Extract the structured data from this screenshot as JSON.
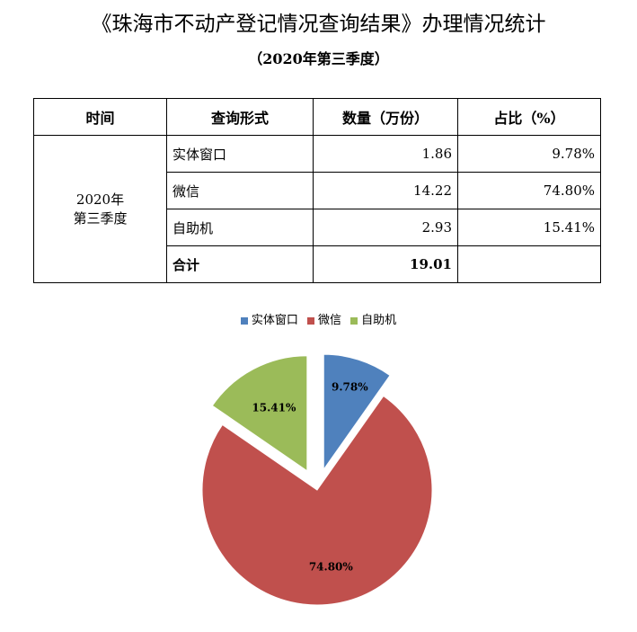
{
  "header": {
    "title": "《珠海市不动产登记情况查询结果》办理情况统计",
    "subtitle": "（2020年第三季度）"
  },
  "table": {
    "headers": [
      "时间",
      "查询形式",
      "数量（万份）",
      "占比（%）"
    ],
    "period_line1": "2020年",
    "period_line2": "第三季度",
    "rows": [
      {
        "type": "实体窗口",
        "count": "1.86",
        "share": "9.78%"
      },
      {
        "type": "微信",
        "count": "14.22",
        "share": "74.80%"
      },
      {
        "type": "自助机",
        "count": "2.93",
        "share": "15.41%"
      }
    ],
    "total": {
      "type": "合计",
      "count": "19.01",
      "share": ""
    }
  },
  "chart_data": {
    "type": "pie",
    "categories": [
      "实体窗口",
      "微信",
      "自助机"
    ],
    "values": [
      9.78,
      74.8,
      15.41
    ],
    "labels": [
      "9.78%",
      "74.80%",
      "15.41%"
    ],
    "colors": [
      "#4f81bd",
      "#c0504d",
      "#9bbb59"
    ],
    "legend": "top",
    "exploded": true
  }
}
